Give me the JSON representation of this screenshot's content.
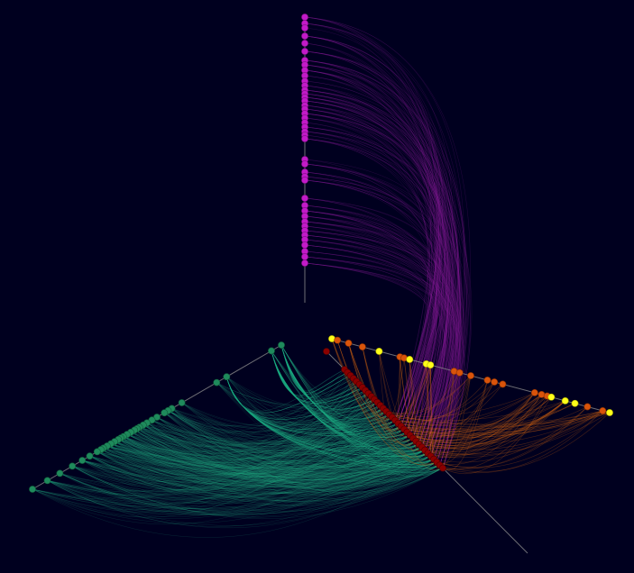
{
  "colors": {
    "background": "#00001f",
    "axis": "#8a8a8a",
    "magenta_nodes": "#c21ac8",
    "magenta_edges": "#8e1aa0",
    "green_nodes": "#1f8a5c",
    "green_edges": "#1fa980",
    "red_nodes": "#8a0000",
    "orange_nodes": "#d9540b",
    "yellow_nodes": "#ffff1a",
    "orange_edges": "#e06a10"
  },
  "chart_data": {
    "type": "hive-plot",
    "axes": [
      {
        "id": "magenta-axis",
        "direction": "vertical",
        "node_color": "magenta",
        "node_count": 56
      },
      {
        "id": "green-axis",
        "direction": "lower-left",
        "node_count": 42,
        "node_color": "green"
      },
      {
        "id": "red-axis",
        "direction": "lower-right",
        "node_count": 36,
        "node_color": "dark red"
      },
      {
        "id": "orange-yellow-axis",
        "direction": "right",
        "node_count": 30,
        "node_color": "orange and yellow"
      }
    ],
    "edges": [
      {
        "from": "magenta-axis",
        "to": "red-axis",
        "color": "magenta"
      },
      {
        "from": "green-axis",
        "to": "red-axis",
        "color": "green"
      },
      {
        "from": "orange-yellow-axis",
        "to": "red-axis",
        "color": "orange"
      }
    ],
    "grid": false,
    "legend": "none"
  }
}
